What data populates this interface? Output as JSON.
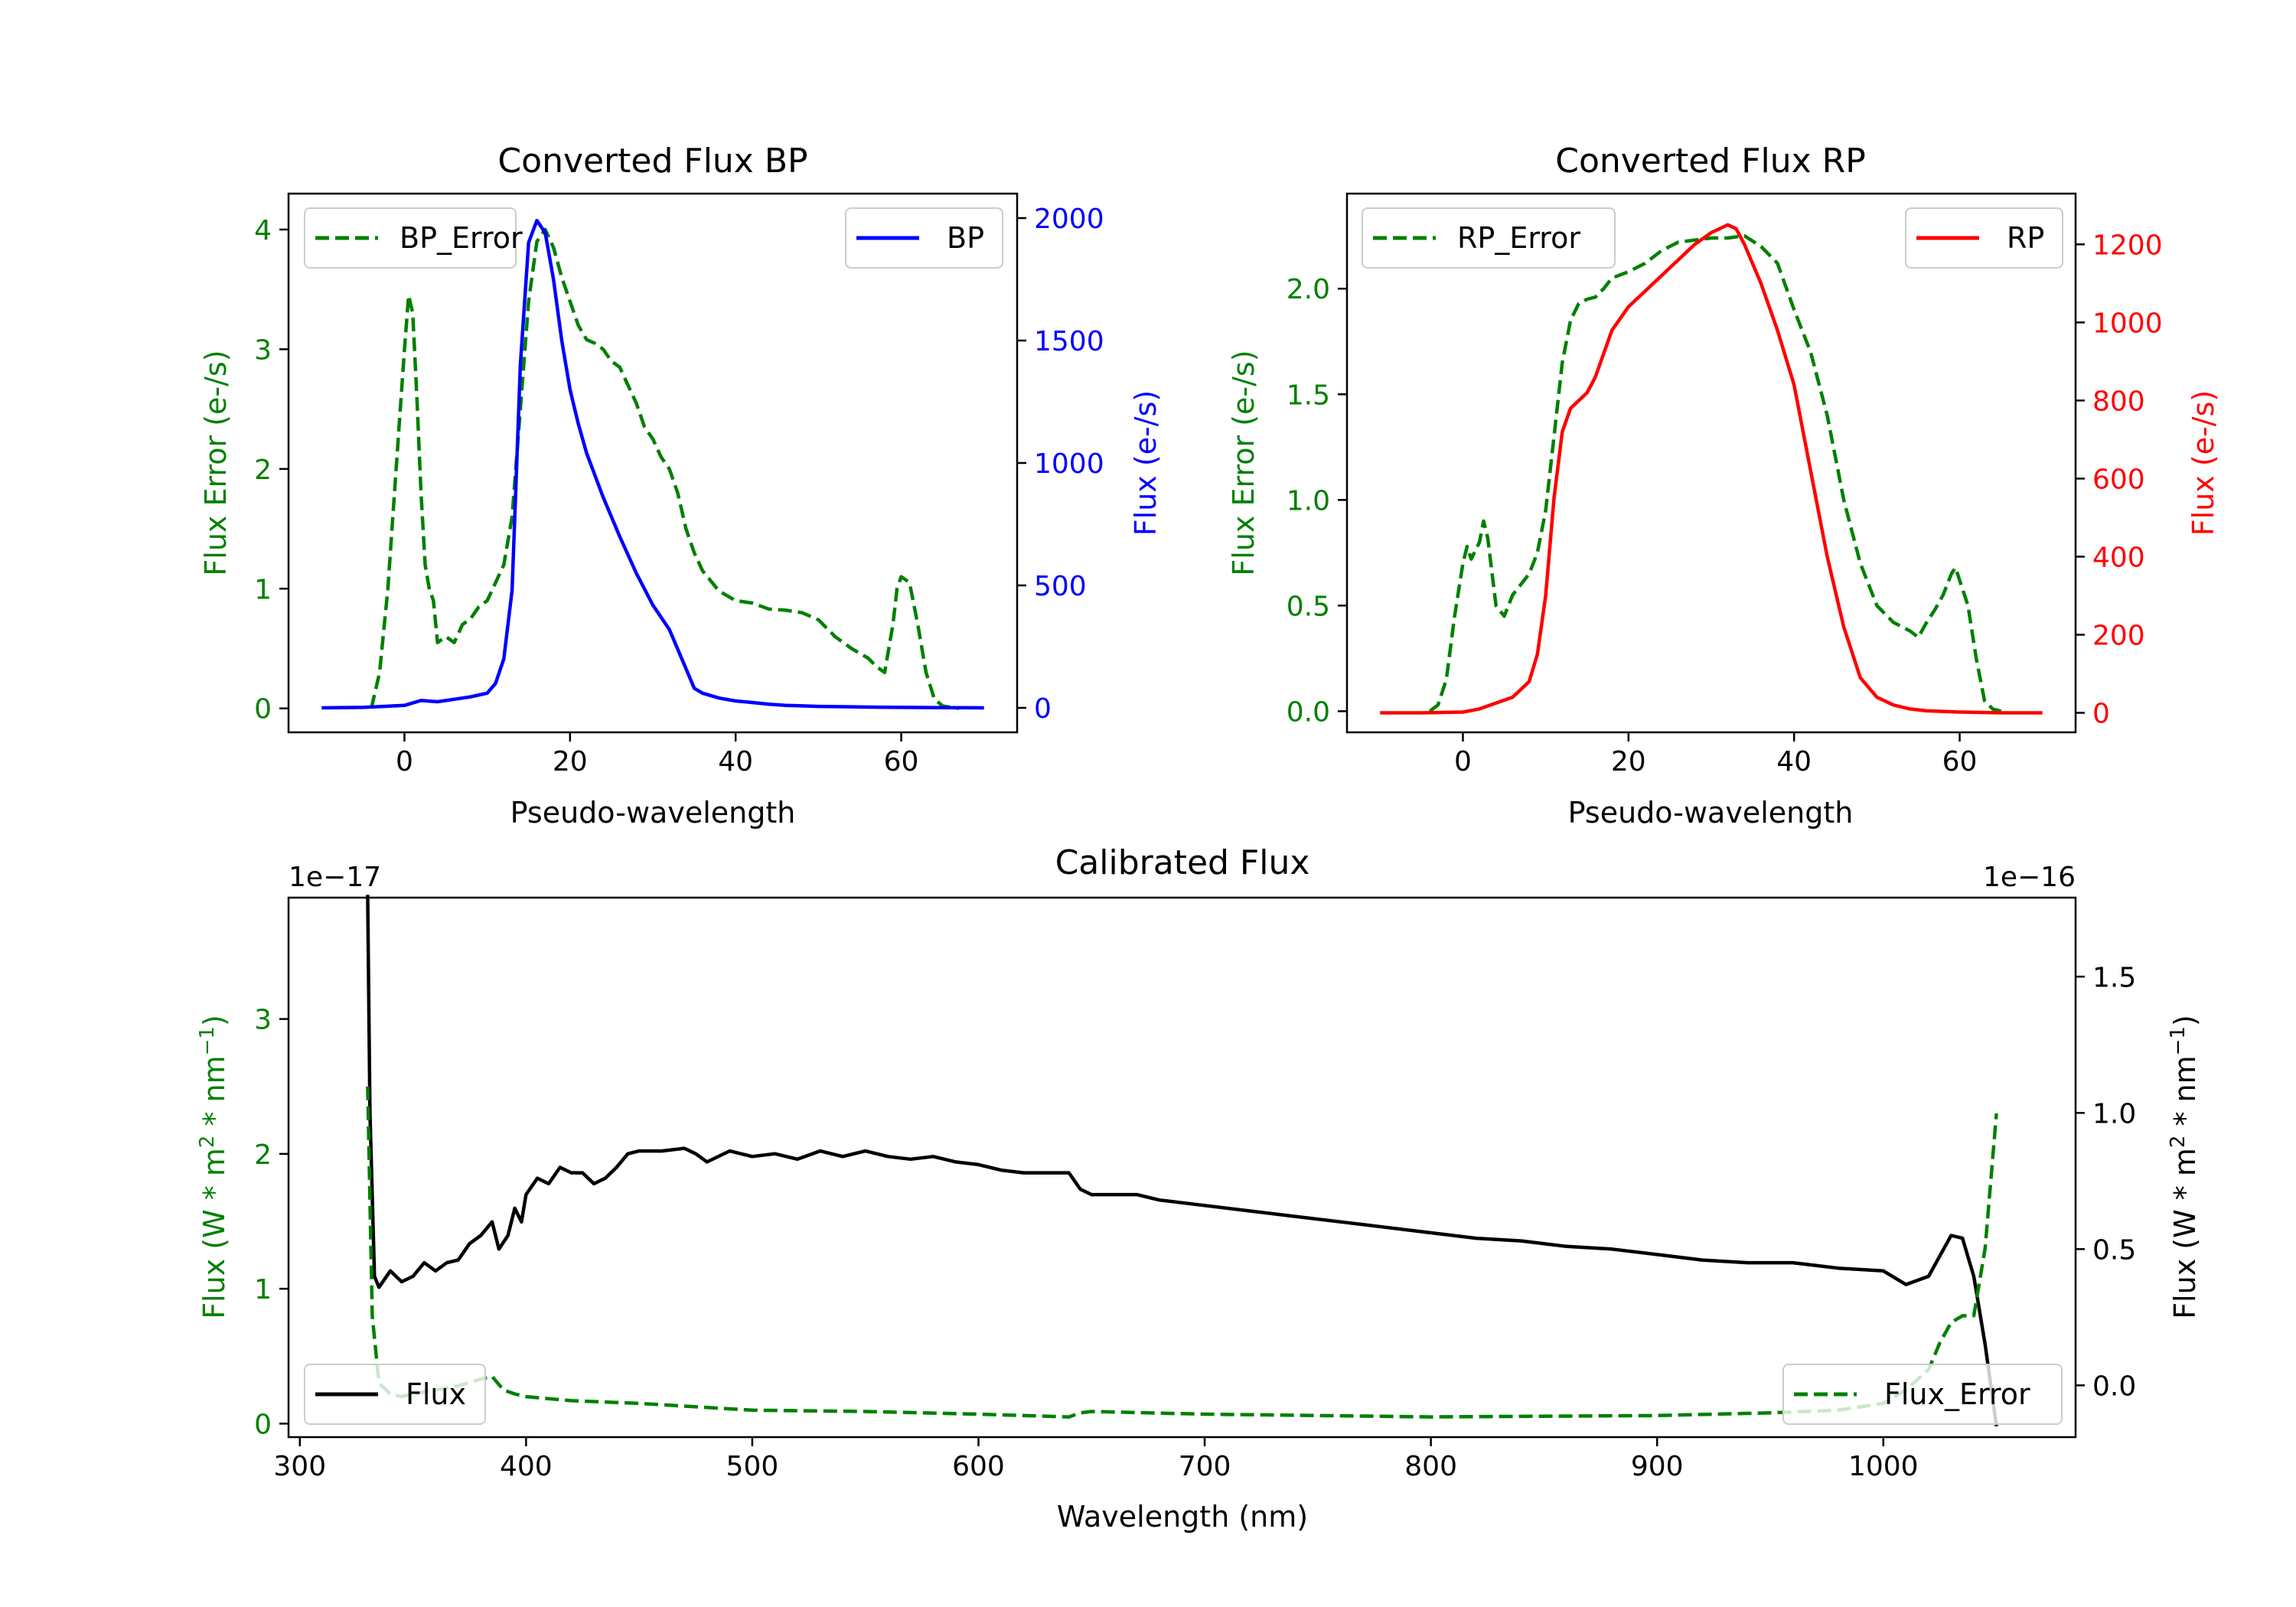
{
  "figure": {
    "background": "#ffffff"
  },
  "colors": {
    "error": "#008000",
    "bp": "#0000ff",
    "rp": "#ff0000",
    "flux": "#000000",
    "axis": "#000000"
  },
  "chart_data": [
    {
      "id": "bp",
      "type": "line",
      "title": "Converted Flux BP",
      "xlabel": "Pseudo-wavelength",
      "ylabel_left": "Flux Error (e-/s)",
      "ylabel_right": "Flux (e-/s)",
      "xlim": [
        -14,
        74
      ],
      "ylim_left": [
        -0.2,
        4.3
      ],
      "ylim_right": [
        -100,
        2100
      ],
      "xticks": [
        0,
        20,
        40,
        60
      ],
      "xtick_labels": [
        "0",
        "20",
        "40",
        "60"
      ],
      "yticks_left": [
        0,
        1,
        2,
        3,
        4
      ],
      "ytick_labels_left": [
        "0",
        "1",
        "2",
        "3",
        "4"
      ],
      "yticks_right": [
        0,
        500,
        1000,
        1500,
        2000
      ],
      "ytick_labels_right": [
        "0",
        "500",
        "1000",
        "1500",
        "2000"
      ],
      "legend_left": {
        "label": "BP_Error",
        "placement": "upper left"
      },
      "legend_right": {
        "label": "BP",
        "placement": "upper right"
      },
      "series": [
        {
          "name": "BP_Error",
          "axis": "left",
          "style": "dashed",
          "color": "#008000",
          "x": [
            -4,
            -3,
            -2,
            -1,
            0,
            0.5,
            1,
            1.5,
            2,
            2.5,
            3,
            3.5,
            4,
            5,
            6,
            7,
            8,
            9,
            10,
            11,
            12,
            13,
            14,
            15,
            16,
            17,
            18,
            19,
            20,
            21,
            22,
            23,
            24,
            25,
            26,
            27,
            28,
            29,
            30,
            31,
            32,
            33,
            34,
            35,
            36,
            38,
            40,
            42,
            44,
            46,
            48,
            50,
            52,
            54,
            56,
            57,
            58,
            59,
            59.5,
            60,
            61,
            62,
            63,
            64,
            65,
            67
          ],
          "y": [
            0,
            0.3,
            1.0,
            2.0,
            3.0,
            3.45,
            3.3,
            2.6,
            1.8,
            1.2,
            1.0,
            0.9,
            0.55,
            0.6,
            0.55,
            0.7,
            0.75,
            0.85,
            0.9,
            1.05,
            1.2,
            1.6,
            2.5,
            3.4,
            3.9,
            4.0,
            3.85,
            3.6,
            3.4,
            3.2,
            3.08,
            3.05,
            3.0,
            2.9,
            2.85,
            2.7,
            2.55,
            2.35,
            2.25,
            2.1,
            2.0,
            1.8,
            1.5,
            1.3,
            1.15,
            0.98,
            0.9,
            0.88,
            0.83,
            0.82,
            0.8,
            0.74,
            0.6,
            0.5,
            0.42,
            0.35,
            0.3,
            0.7,
            1.0,
            1.1,
            1.05,
            0.7,
            0.3,
            0.08,
            0.02,
            0
          ]
        },
        {
          "name": "BP",
          "axis": "right",
          "style": "solid",
          "color": "#0000ff",
          "x": [
            -10,
            -5,
            0,
            2,
            4,
            6,
            8,
            10,
            11,
            12,
            13,
            14,
            15,
            16,
            17,
            18,
            19,
            20,
            21,
            22,
            24,
            26,
            28,
            30,
            32,
            34,
            35,
            36,
            38,
            40,
            42,
            44,
            46,
            48,
            50,
            52,
            56,
            60,
            65,
            70
          ],
          "y": [
            0,
            2,
            10,
            30,
            25,
            35,
            45,
            60,
            100,
            200,
            480,
            1400,
            1900,
            1990,
            1940,
            1750,
            1500,
            1300,
            1160,
            1040,
            860,
            700,
            550,
            420,
            320,
            160,
            80,
            60,
            40,
            28,
            22,
            15,
            10,
            8,
            6,
            5,
            3,
            2,
            1,
            0
          ]
        }
      ]
    },
    {
      "id": "rp",
      "type": "line",
      "title": "Converted Flux RP",
      "xlabel": "Pseudo-wavelength",
      "ylabel_left": "Flux Error (e-/s)",
      "ylabel_right": "Flux (e-/s)",
      "xlim": [
        -14,
        74
      ],
      "ylim_left": [
        -0.1,
        2.45
      ],
      "ylim_right": [
        -50,
        1330
      ],
      "xticks": [
        0,
        20,
        40,
        60
      ],
      "xtick_labels": [
        "0",
        "20",
        "40",
        "60"
      ],
      "yticks_left": [
        0,
        0.5,
        1.0,
        1.5,
        2.0
      ],
      "ytick_labels_left": [
        "0.0",
        "0.5",
        "1.0",
        "1.5",
        "2.0"
      ],
      "yticks_right": [
        0,
        200,
        400,
        600,
        800,
        1000,
        1200
      ],
      "ytick_labels_right": [
        "0",
        "200",
        "400",
        "600",
        "800",
        "1000",
        "1200"
      ],
      "legend_left": {
        "label": "RP_Error",
        "placement": "upper left"
      },
      "legend_right": {
        "label": "RP",
        "placement": "upper right"
      },
      "series": [
        {
          "name": "RP_Error",
          "axis": "left",
          "style": "dashed",
          "color": "#008000",
          "x": [
            -4,
            -3,
            -2,
            -1,
            0,
            0.5,
            1,
            2,
            2.5,
            3,
            4,
            5,
            6,
            7,
            8,
            9,
            10,
            11,
            12,
            13,
            14,
            15,
            16,
            17,
            18,
            20,
            22,
            24,
            26,
            28,
            30,
            32,
            34,
            36,
            38,
            40,
            42,
            44,
            46,
            48,
            50,
            52,
            54,
            55,
            56,
            57,
            58,
            59,
            59.5,
            60,
            61,
            62,
            63,
            64,
            65
          ],
          "y": [
            0,
            0.03,
            0.15,
            0.45,
            0.7,
            0.78,
            0.72,
            0.8,
            0.9,
            0.82,
            0.5,
            0.45,
            0.55,
            0.6,
            0.65,
            0.75,
            0.95,
            1.3,
            1.65,
            1.85,
            1.93,
            1.95,
            1.96,
            2.0,
            2.05,
            2.08,
            2.12,
            2.18,
            2.22,
            2.23,
            2.24,
            2.24,
            2.25,
            2.2,
            2.12,
            1.9,
            1.7,
            1.4,
            1.0,
            0.7,
            0.5,
            0.42,
            0.38,
            0.35,
            0.42,
            0.48,
            0.55,
            0.65,
            0.68,
            0.62,
            0.5,
            0.25,
            0.05,
            0.01,
            0
          ]
        },
        {
          "name": "RP",
          "axis": "right",
          "style": "solid",
          "color": "#ff0000",
          "x": [
            -10,
            -5,
            0,
            2,
            4,
            6,
            8,
            9,
            10,
            11,
            12,
            13,
            14,
            15,
            16,
            18,
            20,
            22,
            24,
            26,
            28,
            30,
            31,
            32,
            33,
            34,
            36,
            38,
            40,
            42,
            44,
            46,
            48,
            50,
            52,
            54,
            56,
            60,
            65,
            70
          ],
          "y": [
            0,
            0,
            2,
            10,
            25,
            40,
            80,
            150,
            300,
            550,
            720,
            780,
            800,
            820,
            860,
            980,
            1040,
            1080,
            1120,
            1160,
            1200,
            1230,
            1240,
            1250,
            1240,
            1200,
            1100,
            980,
            840,
            620,
            400,
            220,
            90,
            40,
            20,
            10,
            5,
            2,
            0,
            0
          ]
        }
      ]
    },
    {
      "id": "calibrated",
      "type": "line",
      "title": "Calibrated Flux",
      "xlabel": "Wavelength (nm)",
      "ylabel_left": "Flux (W * m^2 * nm^-1)",
      "ylabel_right": "Flux (W * m^2 * nm^-1)",
      "offset_left": "1e−17",
      "offset_right": "1e−16",
      "xlim": [
        295,
        1085
      ],
      "ylim_left": [
        -0.1,
        3.9
      ],
      "ylim_right": [
        -0.19,
        1.79
      ],
      "xticks": [
        300,
        400,
        500,
        600,
        700,
        800,
        900,
        1000
      ],
      "xtick_labels": [
        "300",
        "400",
        "500",
        "600",
        "700",
        "800",
        "900",
        "1000"
      ],
      "yticks_left": [
        0,
        1,
        2,
        3
      ],
      "ytick_labels_left": [
        "0",
        "1",
        "2",
        "3"
      ],
      "yticks_right": [
        0.0,
        0.5,
        1.0,
        1.5
      ],
      "ytick_labels_right": [
        "0.0",
        "0.5",
        "1.0",
        "1.5"
      ],
      "legend_left": {
        "label": "Flux",
        "placement": "lower left"
      },
      "legend_right": {
        "label": "Flux_Error",
        "placement": "lower right"
      },
      "series": [
        {
          "name": "Flux",
          "axis": "right",
          "style": "solid",
          "color": "#000000",
          "x": [
            330,
            331,
            333,
            335,
            340,
            345,
            350,
            355,
            360,
            365,
            370,
            375,
            380,
            385,
            388,
            392,
            395,
            398,
            400,
            405,
            410,
            415,
            420,
            425,
            430,
            435,
            440,
            445,
            450,
            460,
            470,
            475,
            480,
            490,
            500,
            510,
            520,
            530,
            540,
            550,
            560,
            570,
            580,
            590,
            600,
            610,
            620,
            630,
            640,
            645,
            650,
            660,
            670,
            680,
            700,
            720,
            740,
            760,
            780,
            800,
            820,
            840,
            860,
            880,
            900,
            920,
            940,
            960,
            980,
            1000,
            1010,
            1020,
            1030,
            1035,
            1040,
            1045,
            1050
          ],
          "y": [
            1.8,
            1.0,
            0.4,
            0.36,
            0.42,
            0.38,
            0.4,
            0.45,
            0.42,
            0.45,
            0.46,
            0.52,
            0.55,
            0.6,
            0.5,
            0.55,
            0.65,
            0.6,
            0.7,
            0.76,
            0.74,
            0.8,
            0.78,
            0.78,
            0.74,
            0.76,
            0.8,
            0.85,
            0.86,
            0.86,
            0.87,
            0.85,
            0.82,
            0.86,
            0.84,
            0.85,
            0.83,
            0.86,
            0.84,
            0.86,
            0.84,
            0.83,
            0.84,
            0.82,
            0.81,
            0.79,
            0.78,
            0.78,
            0.78,
            0.72,
            0.7,
            0.7,
            0.7,
            0.68,
            0.66,
            0.64,
            0.62,
            0.6,
            0.58,
            0.56,
            0.54,
            0.53,
            0.51,
            0.5,
            0.48,
            0.46,
            0.45,
            0.45,
            0.43,
            0.42,
            0.37,
            0.4,
            0.55,
            0.54,
            0.4,
            0.15,
            -0.15
          ]
        },
        {
          "name": "Flux_Error",
          "axis": "left",
          "style": "dashed",
          "color": "#008000",
          "x": [
            330,
            332,
            335,
            340,
            345,
            350,
            360,
            370,
            380,
            385,
            390,
            395,
            400,
            420,
            450,
            500,
            550,
            600,
            640,
            645,
            650,
            700,
            800,
            900,
            950,
            980,
            1000,
            1010,
            1020,
            1025,
            1030,
            1035,
            1040,
            1045,
            1050
          ],
          "y": [
            2.5,
            0.8,
            0.3,
            0.22,
            0.2,
            0.22,
            0.25,
            0.28,
            0.33,
            0.35,
            0.25,
            0.22,
            0.2,
            0.17,
            0.15,
            0.1,
            0.09,
            0.07,
            0.05,
            0.08,
            0.09,
            0.07,
            0.05,
            0.06,
            0.08,
            0.1,
            0.15,
            0.25,
            0.4,
            0.6,
            0.75,
            0.8,
            0.8,
            1.3,
            2.3
          ]
        }
      ]
    }
  ]
}
